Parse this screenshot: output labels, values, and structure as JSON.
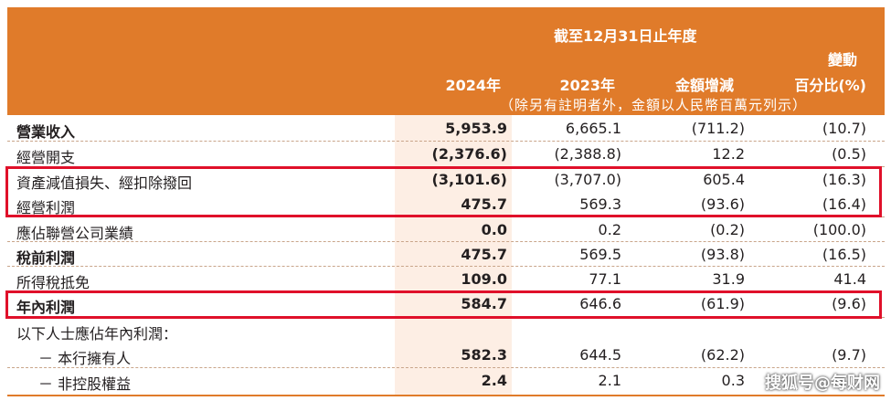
{
  "header": {
    "period": "截至12月31日止年度",
    "change_top": "變動",
    "year_2024": "2024年",
    "year_2023": "2023年",
    "amount_change": "金額增減",
    "percent_change": "百分比(%)",
    "note": "（除另有註明者外，金額以人民幣百萬元列示）"
  },
  "rows": [
    {
      "label": "營業收入",
      "v2024": "5,953.9",
      "v2023": "6,665.1",
      "amount": "(711.2)",
      "pct": "(10.7)"
    },
    {
      "label": "經營開支",
      "v2024": "(2,376.6)",
      "v2023": "(2,388.8)",
      "amount": "12.2",
      "pct": "(0.5)"
    },
    {
      "label": "資產減值損失、經扣除撥回",
      "v2024": "(3,101.6)",
      "v2023": "(3,707.0)",
      "amount": "605.4",
      "pct": "(16.3)"
    },
    {
      "label": "經營利潤",
      "v2024": "475.7",
      "v2023": "569.3",
      "amount": "(93.6)",
      "pct": "(16.4)"
    },
    {
      "label": "應佔聯營公司業績",
      "v2024": "0.0",
      "v2023": "0.2",
      "amount": "(0.2)",
      "pct": "(100.0)"
    },
    {
      "label": "稅前利潤",
      "v2024": "475.7",
      "v2023": "569.5",
      "amount": "(93.8)",
      "pct": "(16.5)"
    },
    {
      "label": "所得稅抵免",
      "v2024": "109.0",
      "v2023": "77.1",
      "amount": "31.9",
      "pct": "41.4"
    },
    {
      "label": "年內利潤",
      "v2024": "584.7",
      "v2023": "646.6",
      "amount": "(61.9)",
      "pct": "(9.6)"
    },
    {
      "label": "以下人士應佔年內利潤："
    },
    {
      "label": "－ 本行擁有人",
      "v2024": "582.3",
      "v2023": "644.5",
      "amount": "(62.2)",
      "pct": "(9.7)"
    },
    {
      "label": "－ 非控股權益",
      "v2024": "2.4",
      "v2023": "2.1",
      "amount": "0.3",
      "pct": ""
    }
  ],
  "watermark": "搜狐号@每财网",
  "colors": {
    "header_bg": "#e07b2a",
    "highlight_col": "#fdeee4",
    "annotation_box": "#e0102a"
  }
}
